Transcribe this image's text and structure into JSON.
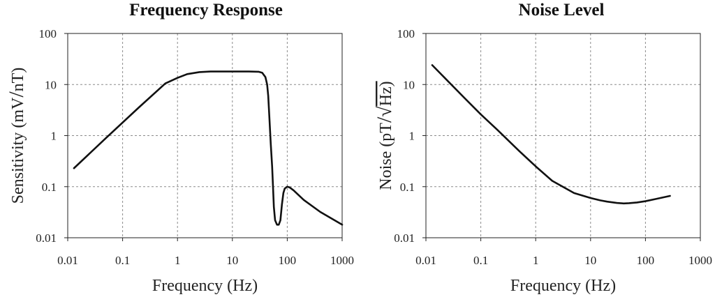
{
  "chart_data": [
    {
      "type": "line",
      "title": "Frequency Response",
      "xlabel": "Frequency (Hz)",
      "ylabel": "Sensitivity (mV/nT)",
      "ylabel_parts": [
        "Sensitivity (mV",
        "/",
        "nT)"
      ],
      "x_scale": "log",
      "y_scale": "log",
      "xlim": [
        0.01,
        1000
      ],
      "ylim": [
        0.01,
        100
      ],
      "grid": true,
      "x_ticks": [
        "0.01",
        "0.1",
        "1",
        "10",
        "100",
        "1000"
      ],
      "y_ticks": [
        "0.01",
        "0.1",
        "1",
        "10",
        "100"
      ],
      "series": [
        {
          "x": [
            0.013,
            0.05,
            0.2,
            0.6,
            1.0,
            1.5,
            2.5,
            4,
            10,
            20,
            30,
            35,
            40,
            43,
            45,
            47,
            50,
            53,
            55,
            57,
            60,
            65,
            70,
            75,
            80,
            85,
            90,
            100,
            110,
            130,
            200,
            400,
            1000
          ],
          "y": [
            0.23,
            0.9,
            3.6,
            10.5,
            13.5,
            16,
            17.5,
            18,
            18,
            18,
            17.8,
            17,
            14,
            10,
            6,
            2.5,
            0.7,
            0.25,
            0.1,
            0.04,
            0.022,
            0.018,
            0.018,
            0.022,
            0.045,
            0.075,
            0.092,
            0.1,
            0.097,
            0.085,
            0.055,
            0.032,
            0.018
          ]
        }
      ]
    },
    {
      "type": "line",
      "title": "Noise Level",
      "xlabel": "Frequency (Hz)",
      "ylabel": "Noise (pT/√Hz)",
      "ylabel_parts": [
        "Noise (pT",
        "/",
        "√",
        "Hz)"
      ],
      "x_scale": "log",
      "y_scale": "log",
      "xlim": [
        0.01,
        1000
      ],
      "ylim": [
        0.01,
        100
      ],
      "grid": true,
      "x_ticks": [
        "0.01",
        "0.1",
        "1",
        "10",
        "100",
        "1000"
      ],
      "y_ticks": [
        "0.01",
        "0.1",
        "1",
        "10",
        "100"
      ],
      "series": [
        {
          "x": [
            0.013,
            0.02,
            0.05,
            0.1,
            0.2,
            0.5,
            1,
            2,
            5,
            10,
            15,
            20,
            30,
            40,
            50,
            70,
            100,
            150,
            200,
            280
          ],
          "y": [
            24,
            15,
            5.5,
            2.6,
            1.3,
            0.5,
            0.25,
            0.13,
            0.075,
            0.06,
            0.054,
            0.051,
            0.048,
            0.047,
            0.0475,
            0.049,
            0.052,
            0.057,
            0.061,
            0.066
          ]
        }
      ]
    }
  ]
}
